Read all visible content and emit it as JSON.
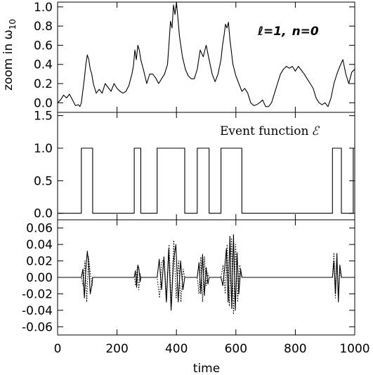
{
  "chart_data": [
    {
      "type": "line",
      "panel": "top",
      "ylabel": "zoom in ω",
      "ylabel_subscript": "10",
      "annotation": {
        "l_part": "ℓ=1,",
        "n_part": "n=0"
      },
      "ylim": [
        -0.1,
        1.05
      ],
      "yticks": [
        "0.0",
        "0.2",
        "0.4",
        "0.6",
        "0.8",
        "1.0"
      ],
      "xlim": [
        0,
        1000
      ],
      "grid": false,
      "series": [
        {
          "x": [
            0,
            10,
            20,
            30,
            40,
            50,
            60,
            70,
            75,
            80,
            90,
            95,
            100,
            105,
            110,
            115,
            120,
            125,
            130,
            140,
            145,
            150,
            160,
            170,
            180,
            190,
            200,
            210,
            220,
            230,
            240,
            250,
            255,
            260,
            265,
            270,
            275,
            280,
            290,
            300,
            310,
            320,
            330,
            340,
            350,
            360,
            370,
            375,
            380,
            385,
            390,
            395,
            400,
            405,
            410,
            420,
            430,
            440,
            450,
            460,
            470,
            480,
            490,
            500,
            510,
            520,
            530,
            540,
            550,
            555,
            560,
            565,
            570,
            575,
            580,
            590,
            600,
            610,
            620,
            630,
            640,
            650,
            660,
            670,
            680,
            690,
            700,
            710,
            720,
            730,
            740,
            750,
            760,
            770,
            780,
            790,
            800,
            810,
            820,
            830,
            840,
            850,
            860,
            870,
            880,
            890,
            900,
            910,
            920,
            930,
            940,
            950,
            960,
            970,
            980,
            990,
            1000
          ],
          "y": [
            0.0,
            0.03,
            0.08,
            0.05,
            0.09,
            0.03,
            -0.03,
            -0.02,
            -0.04,
            0.0,
            0.25,
            0.4,
            0.5,
            0.45,
            0.35,
            0.3,
            0.2,
            0.15,
            0.1,
            0.14,
            0.12,
            0.1,
            0.2,
            0.16,
            0.12,
            0.2,
            0.15,
            0.12,
            0.1,
            0.12,
            0.18,
            0.3,
            0.38,
            0.55,
            0.45,
            0.6,
            0.55,
            0.45,
            0.33,
            0.2,
            0.3,
            0.3,
            0.26,
            0.2,
            0.25,
            0.3,
            0.4,
            0.62,
            0.85,
            0.78,
            1.02,
            0.92,
            1.05,
            0.88,
            0.7,
            0.48,
            0.35,
            0.28,
            0.25,
            0.25,
            0.35,
            0.55,
            0.48,
            0.6,
            0.45,
            0.3,
            0.22,
            0.3,
            0.45,
            0.6,
            0.7,
            0.82,
            0.78,
            0.84,
            0.66,
            0.4,
            0.28,
            0.2,
            0.12,
            0.15,
            0.1,
            0.0,
            -0.03,
            -0.02,
            0.0,
            0.03,
            -0.04,
            -0.04,
            0.0,
            0.1,
            0.2,
            0.3,
            0.35,
            0.38,
            0.36,
            0.38,
            0.33,
            0.38,
            0.34,
            0.3,
            0.25,
            0.2,
            0.15,
            0.05,
            0.0,
            -0.02,
            0.0,
            -0.04,
            0.05,
            0.2,
            0.3,
            0.38,
            0.45,
            0.3,
            0.2,
            0.32,
            0.35
          ]
        }
      ]
    },
    {
      "type": "line",
      "panel": "middle",
      "annotation": {
        "text": "Event function",
        "symbol": "ℰ"
      },
      "ylim": [
        -0.1,
        1.55
      ],
      "yticks": [
        "0.0",
        "0.5",
        "1.0",
        "1.5"
      ],
      "xlim": [
        0,
        1000
      ],
      "grid": false,
      "series": [
        {
          "x": [
            0,
            80,
            80,
            118,
            118,
            258,
            258,
            280,
            280,
            335,
            335,
            428,
            428,
            470,
            470,
            510,
            510,
            550,
            550,
            620,
            620,
            925,
            925,
            955,
            955,
            995,
            995,
            1000
          ],
          "y": [
            0,
            0,
            1,
            1,
            0,
            0,
            1,
            1,
            0,
            0,
            1,
            1,
            0,
            0,
            1,
            1,
            0,
            0,
            1,
            1,
            0,
            0,
            1,
            1,
            0,
            0,
            1,
            1
          ]
        }
      ]
    },
    {
      "type": "line",
      "panel": "bottom",
      "ylim": [
        -0.07,
        0.07
      ],
      "yticks": [
        "-0.06",
        "-0.04",
        "-0.02",
        "0.00",
        "0.02",
        "0.04",
        "0.06"
      ],
      "xlim": [
        0,
        1000
      ],
      "xticks": [
        "0",
        "200",
        "400",
        "600",
        "800",
        "1000"
      ],
      "xlabel": "time",
      "grid": false,
      "series": [
        {
          "style": "solid",
          "x": [
            0,
            80,
            85,
            90,
            95,
            100,
            105,
            110,
            115,
            118,
            258,
            262,
            266,
            270,
            274,
            278,
            280,
            335,
            342,
            350,
            358,
            366,
            374,
            382,
            390,
            398,
            406,
            414,
            422,
            428,
            470,
            476,
            482,
            488,
            494,
            500,
            506,
            510,
            550,
            556,
            562,
            568,
            574,
            580,
            586,
            592,
            598,
            604,
            610,
            616,
            620,
            925,
            930,
            935,
            940,
            945,
            950,
            955,
            1000
          ],
          "y": [
            0,
            0,
            0.01,
            -0.025,
            0.01,
            0.032,
            0.015,
            -0.02,
            -0.01,
            0,
            0,
            0.008,
            -0.012,
            0.015,
            0.01,
            -0.005,
            0,
            0,
            0.022,
            -0.015,
            0.025,
            -0.03,
            0.035,
            -0.04,
            0.02,
            0.04,
            -0.03,
            0.02,
            -0.015,
            0,
            0,
            0.018,
            -0.02,
            0.028,
            -0.022,
            0.012,
            -0.008,
            0,
            0,
            -0.01,
            0.01,
            0.035,
            -0.03,
            0.05,
            -0.038,
            0.052,
            -0.04,
            0.03,
            -0.02,
            0.01,
            0,
            0,
            0.02,
            -0.02,
            0.028,
            -0.03,
            0.015,
            0,
            0
          ]
        },
        {
          "style": "dotted",
          "x": [
            0,
            80,
            86,
            92,
            98,
            104,
            110,
            116,
            118,
            258,
            263,
            268,
            273,
            278,
            280,
            335,
            343,
            351,
            359,
            367,
            375,
            383,
            391,
            399,
            407,
            415,
            423,
            428,
            470,
            476,
            482,
            488,
            494,
            500,
            506,
            510,
            550,
            557,
            564,
            571,
            578,
            585,
            592,
            599,
            606,
            613,
            620,
            925,
            930,
            935,
            940,
            945,
            950,
            955,
            1000
          ],
          "y": [
            0,
            0,
            -0.01,
            0.02,
            -0.03,
            0.025,
            0.005,
            -0.01,
            0,
            0,
            -0.01,
            0.012,
            -0.015,
            0.005,
            0,
            0,
            -0.025,
            0.02,
            0.02,
            -0.028,
            0.04,
            -0.035,
            0.045,
            -0.025,
            0.02,
            -0.03,
            0.01,
            0,
            0,
            -0.02,
            0.025,
            -0.03,
            0.025,
            -0.01,
            0.005,
            0,
            0,
            0.015,
            -0.02,
            0.04,
            -0.035,
            0.048,
            -0.045,
            0.04,
            -0.03,
            0.015,
            0,
            0,
            0.03,
            -0.025,
            0.03,
            -0.022,
            0.01,
            0,
            0
          ]
        }
      ]
    }
  ]
}
